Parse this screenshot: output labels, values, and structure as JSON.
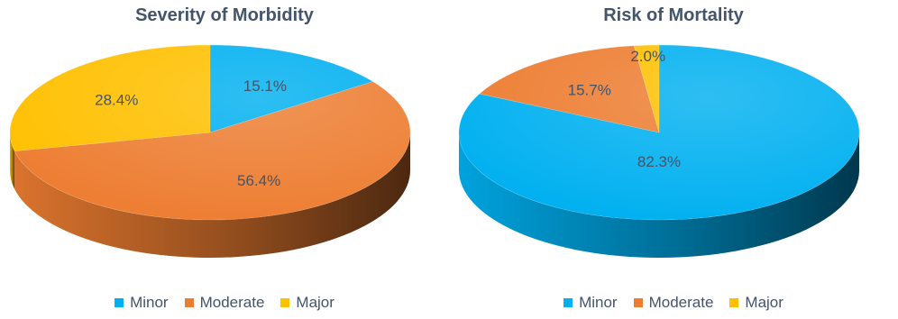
{
  "chart_data": [
    {
      "type": "pie",
      "title": "Severity of Morbidity",
      "categories": [
        "Minor",
        "Moderate",
        "Major"
      ],
      "values": [
        15.1,
        56.4,
        28.4
      ],
      "value_labels": [
        "15.1%",
        "56.4%",
        "28.4%"
      ],
      "colors": [
        "#00b0f0",
        "#ed7d31",
        "#ffc000"
      ],
      "legend": "bottom",
      "style": "3d"
    },
    {
      "type": "pie",
      "title": "Risk of Mortality",
      "categories": [
        "Minor",
        "Moderate",
        "Major"
      ],
      "values": [
        82.3,
        15.7,
        2.0
      ],
      "value_labels": [
        "82.3%",
        "15.7%",
        "2.0%"
      ],
      "colors": [
        "#00b0f0",
        "#ed7d31",
        "#ffc000"
      ],
      "legend": "bottom",
      "style": "3d"
    }
  ]
}
